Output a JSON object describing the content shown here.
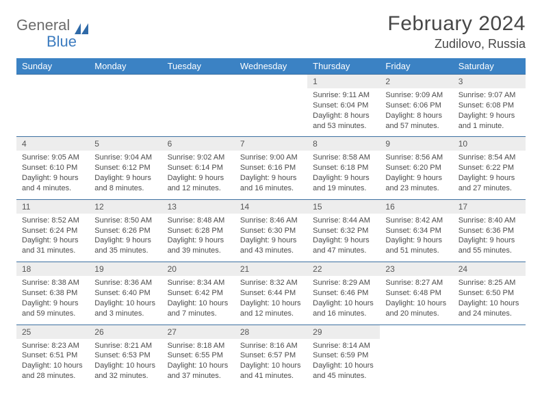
{
  "logo": {
    "part1": "General",
    "part2": "Blue"
  },
  "title": "February 2024",
  "location": "Zudilovo, Russia",
  "colors": {
    "header_bg": "#3b82c4",
    "header_text": "#ffffff",
    "datenum_bg": "#ededed",
    "week_border": "#3b6fa0",
    "logo_gray": "#6b6b6b",
    "logo_blue": "#3b7bbf"
  },
  "day_names": [
    "Sunday",
    "Monday",
    "Tuesday",
    "Wednesday",
    "Thursday",
    "Friday",
    "Saturday"
  ],
  "weeks": [
    {
      "days": [
        {
          "num": "",
          "sunrise": "",
          "sunset": "",
          "daylight1": "",
          "daylight2": ""
        },
        {
          "num": "",
          "sunrise": "",
          "sunset": "",
          "daylight1": "",
          "daylight2": ""
        },
        {
          "num": "",
          "sunrise": "",
          "sunset": "",
          "daylight1": "",
          "daylight2": ""
        },
        {
          "num": "",
          "sunrise": "",
          "sunset": "",
          "daylight1": "",
          "daylight2": ""
        },
        {
          "num": "1",
          "sunrise": "Sunrise: 9:11 AM",
          "sunset": "Sunset: 6:04 PM",
          "daylight1": "Daylight: 8 hours",
          "daylight2": "and 53 minutes."
        },
        {
          "num": "2",
          "sunrise": "Sunrise: 9:09 AM",
          "sunset": "Sunset: 6:06 PM",
          "daylight1": "Daylight: 8 hours",
          "daylight2": "and 57 minutes."
        },
        {
          "num": "3",
          "sunrise": "Sunrise: 9:07 AM",
          "sunset": "Sunset: 6:08 PM",
          "daylight1": "Daylight: 9 hours",
          "daylight2": "and 1 minute."
        }
      ]
    },
    {
      "days": [
        {
          "num": "4",
          "sunrise": "Sunrise: 9:05 AM",
          "sunset": "Sunset: 6:10 PM",
          "daylight1": "Daylight: 9 hours",
          "daylight2": "and 4 minutes."
        },
        {
          "num": "5",
          "sunrise": "Sunrise: 9:04 AM",
          "sunset": "Sunset: 6:12 PM",
          "daylight1": "Daylight: 9 hours",
          "daylight2": "and 8 minutes."
        },
        {
          "num": "6",
          "sunrise": "Sunrise: 9:02 AM",
          "sunset": "Sunset: 6:14 PM",
          "daylight1": "Daylight: 9 hours",
          "daylight2": "and 12 minutes."
        },
        {
          "num": "7",
          "sunrise": "Sunrise: 9:00 AM",
          "sunset": "Sunset: 6:16 PM",
          "daylight1": "Daylight: 9 hours",
          "daylight2": "and 16 minutes."
        },
        {
          "num": "8",
          "sunrise": "Sunrise: 8:58 AM",
          "sunset": "Sunset: 6:18 PM",
          "daylight1": "Daylight: 9 hours",
          "daylight2": "and 19 minutes."
        },
        {
          "num": "9",
          "sunrise": "Sunrise: 8:56 AM",
          "sunset": "Sunset: 6:20 PM",
          "daylight1": "Daylight: 9 hours",
          "daylight2": "and 23 minutes."
        },
        {
          "num": "10",
          "sunrise": "Sunrise: 8:54 AM",
          "sunset": "Sunset: 6:22 PM",
          "daylight1": "Daylight: 9 hours",
          "daylight2": "and 27 minutes."
        }
      ]
    },
    {
      "days": [
        {
          "num": "11",
          "sunrise": "Sunrise: 8:52 AM",
          "sunset": "Sunset: 6:24 PM",
          "daylight1": "Daylight: 9 hours",
          "daylight2": "and 31 minutes."
        },
        {
          "num": "12",
          "sunrise": "Sunrise: 8:50 AM",
          "sunset": "Sunset: 6:26 PM",
          "daylight1": "Daylight: 9 hours",
          "daylight2": "and 35 minutes."
        },
        {
          "num": "13",
          "sunrise": "Sunrise: 8:48 AM",
          "sunset": "Sunset: 6:28 PM",
          "daylight1": "Daylight: 9 hours",
          "daylight2": "and 39 minutes."
        },
        {
          "num": "14",
          "sunrise": "Sunrise: 8:46 AM",
          "sunset": "Sunset: 6:30 PM",
          "daylight1": "Daylight: 9 hours",
          "daylight2": "and 43 minutes."
        },
        {
          "num": "15",
          "sunrise": "Sunrise: 8:44 AM",
          "sunset": "Sunset: 6:32 PM",
          "daylight1": "Daylight: 9 hours",
          "daylight2": "and 47 minutes."
        },
        {
          "num": "16",
          "sunrise": "Sunrise: 8:42 AM",
          "sunset": "Sunset: 6:34 PM",
          "daylight1": "Daylight: 9 hours",
          "daylight2": "and 51 minutes."
        },
        {
          "num": "17",
          "sunrise": "Sunrise: 8:40 AM",
          "sunset": "Sunset: 6:36 PM",
          "daylight1": "Daylight: 9 hours",
          "daylight2": "and 55 minutes."
        }
      ]
    },
    {
      "days": [
        {
          "num": "18",
          "sunrise": "Sunrise: 8:38 AM",
          "sunset": "Sunset: 6:38 PM",
          "daylight1": "Daylight: 9 hours",
          "daylight2": "and 59 minutes."
        },
        {
          "num": "19",
          "sunrise": "Sunrise: 8:36 AM",
          "sunset": "Sunset: 6:40 PM",
          "daylight1": "Daylight: 10 hours",
          "daylight2": "and 3 minutes."
        },
        {
          "num": "20",
          "sunrise": "Sunrise: 8:34 AM",
          "sunset": "Sunset: 6:42 PM",
          "daylight1": "Daylight: 10 hours",
          "daylight2": "and 7 minutes."
        },
        {
          "num": "21",
          "sunrise": "Sunrise: 8:32 AM",
          "sunset": "Sunset: 6:44 PM",
          "daylight1": "Daylight: 10 hours",
          "daylight2": "and 12 minutes."
        },
        {
          "num": "22",
          "sunrise": "Sunrise: 8:29 AM",
          "sunset": "Sunset: 6:46 PM",
          "daylight1": "Daylight: 10 hours",
          "daylight2": "and 16 minutes."
        },
        {
          "num": "23",
          "sunrise": "Sunrise: 8:27 AM",
          "sunset": "Sunset: 6:48 PM",
          "daylight1": "Daylight: 10 hours",
          "daylight2": "and 20 minutes."
        },
        {
          "num": "24",
          "sunrise": "Sunrise: 8:25 AM",
          "sunset": "Sunset: 6:50 PM",
          "daylight1": "Daylight: 10 hours",
          "daylight2": "and 24 minutes."
        }
      ]
    },
    {
      "days": [
        {
          "num": "25",
          "sunrise": "Sunrise: 8:23 AM",
          "sunset": "Sunset: 6:51 PM",
          "daylight1": "Daylight: 10 hours",
          "daylight2": "and 28 minutes."
        },
        {
          "num": "26",
          "sunrise": "Sunrise: 8:21 AM",
          "sunset": "Sunset: 6:53 PM",
          "daylight1": "Daylight: 10 hours",
          "daylight2": "and 32 minutes."
        },
        {
          "num": "27",
          "sunrise": "Sunrise: 8:18 AM",
          "sunset": "Sunset: 6:55 PM",
          "daylight1": "Daylight: 10 hours",
          "daylight2": "and 37 minutes."
        },
        {
          "num": "28",
          "sunrise": "Sunrise: 8:16 AM",
          "sunset": "Sunset: 6:57 PM",
          "daylight1": "Daylight: 10 hours",
          "daylight2": "and 41 minutes."
        },
        {
          "num": "29",
          "sunrise": "Sunrise: 8:14 AM",
          "sunset": "Sunset: 6:59 PM",
          "daylight1": "Daylight: 10 hours",
          "daylight2": "and 45 minutes."
        },
        {
          "num": "",
          "sunrise": "",
          "sunset": "",
          "daylight1": "",
          "daylight2": ""
        },
        {
          "num": "",
          "sunrise": "",
          "sunset": "",
          "daylight1": "",
          "daylight2": ""
        }
      ]
    }
  ]
}
